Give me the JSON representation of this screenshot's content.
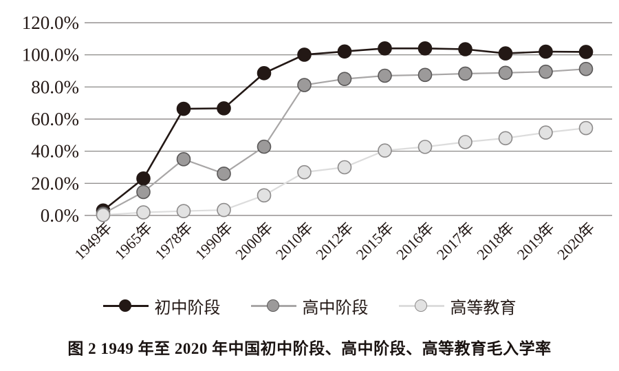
{
  "figure": {
    "caption": "图 2  1949 年至 2020 年中国初中阶段、高中阶段、高等教育毛入学率"
  },
  "chart_data": {
    "type": "line",
    "title": "",
    "xlabel": "",
    "ylabel": "",
    "categories": [
      "1949年",
      "1965年",
      "1978年",
      "1990年",
      "2000年",
      "2010年",
      "2012年",
      "2015年",
      "2016年",
      "2017年",
      "2018年",
      "2019年",
      "2020年"
    ],
    "series": [
      {
        "key": "junior-middle",
        "name": "初中阶段",
        "values": [
          3.1,
          23.0,
          66.4,
          66.7,
          88.6,
          100.1,
          102.1,
          104.0,
          104.0,
          103.5,
          100.9,
          102.0,
          101.8
        ],
        "line_color": "#231815",
        "marker_fill": "#231815",
        "marker_stroke": "#231815"
      },
      {
        "key": "senior-high",
        "name": "高中阶段",
        "values": [
          1.1,
          14.6,
          35.0,
          26.0,
          42.8,
          81.2,
          85.0,
          87.0,
          87.5,
          88.3,
          88.8,
          89.5,
          91.2
        ],
        "line_color": "#a8a6a6",
        "marker_fill": "#9c9a9a",
        "marker_stroke": "#595757"
      },
      {
        "key": "higher-education",
        "name": "高等教育",
        "values": [
          0.3,
          1.9,
          2.7,
          3.4,
          12.5,
          26.9,
          30.0,
          40.4,
          42.7,
          45.7,
          48.1,
          51.6,
          54.4
        ],
        "line_color": "#dcdcdc",
        "marker_fill": "#e2e2e2",
        "marker_stroke": "#8c8a8a"
      }
    ],
    "y_ticks": [
      "0.0%",
      "20.0%",
      "40.0%",
      "60.0%",
      "80.0%",
      "100.0%",
      "120.0%"
    ],
    "ylim": [
      0,
      120
    ],
    "y_tick_step": 20,
    "grid": true,
    "legend_position": "bottom"
  },
  "colors": {
    "gridline": "#7f7b7a",
    "text": "#231815",
    "background": "#ffffff"
  }
}
